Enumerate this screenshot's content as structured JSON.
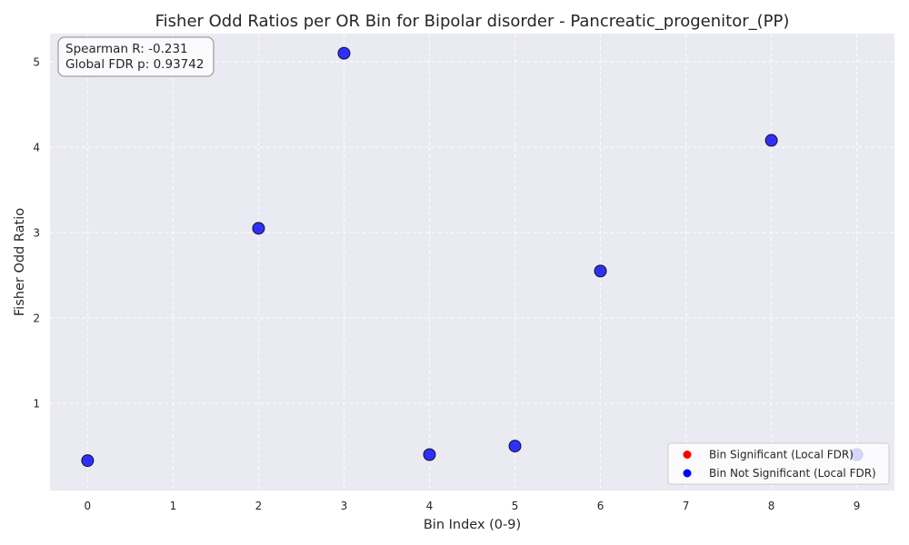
{
  "chart_data": {
    "type": "scatter",
    "title": "Fisher Odd Ratios per OR Bin for Bipolar disorder - Pancreatic_progenitor_(PP)",
    "xlabel": "Bin Index (0-9)",
    "ylabel": "Fisher Odd Ratio",
    "xlim": [
      -0.44,
      9.44
    ],
    "ylim": [
      -0.02,
      5.33
    ],
    "x_ticks": [
      0,
      1,
      2,
      3,
      4,
      5,
      6,
      7,
      8,
      9
    ],
    "y_ticks": [
      1,
      2,
      3,
      4,
      5
    ],
    "grid": true,
    "legend_position": "bottom-right",
    "series": [
      {
        "name": "Bin Significant (Local FDR)",
        "color": "#ff0000",
        "points": []
      },
      {
        "name": "Bin Not Significant (Local FDR)",
        "color": "#0000ff",
        "points": [
          {
            "x": 0,
            "y": 0.33
          },
          {
            "x": 2,
            "y": 3.05
          },
          {
            "x": 3,
            "y": 5.1
          },
          {
            "x": 4,
            "y": 0.4
          },
          {
            "x": 5,
            "y": 0.5
          },
          {
            "x": 6,
            "y": 2.55
          },
          {
            "x": 8,
            "y": 4.08
          },
          {
            "x": 9,
            "y": 0.4
          }
        ]
      }
    ],
    "annotations": [
      "Spearman R: -0.231",
      "Global FDR p: 0.93742"
    ]
  }
}
